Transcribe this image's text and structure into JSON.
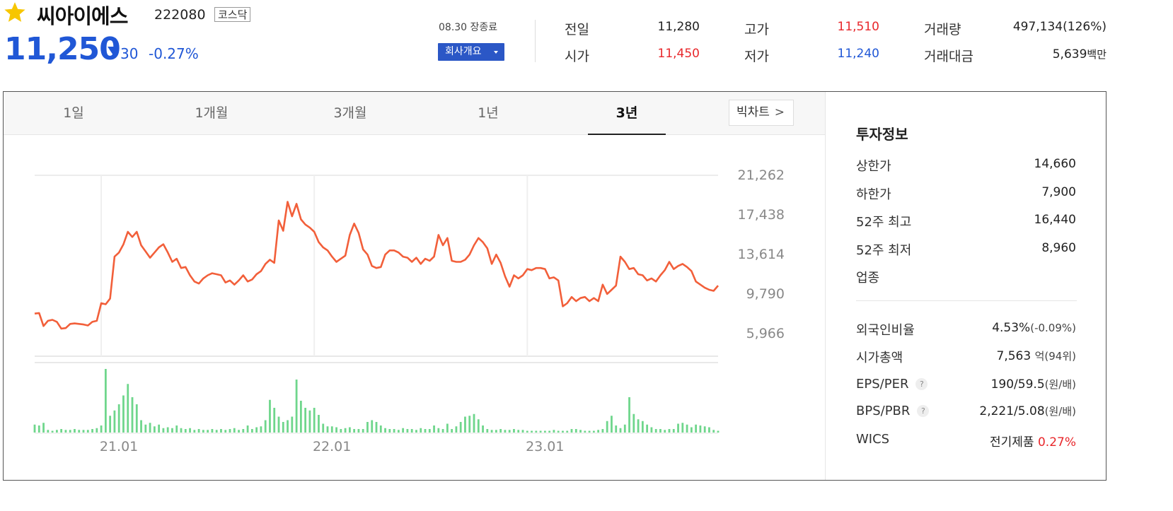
{
  "header": {
    "favorite_icon": "star-icon",
    "name": "씨아이에스",
    "code": "222080",
    "market": "코스닥",
    "price": "11,250",
    "change_direction": "down",
    "change_value": "30",
    "change_rate": "-0.27%",
    "trade_date": "08.30 장종료",
    "company_button": "회사개요",
    "colors": {
      "up": "#e8272b",
      "down": "#2057d6",
      "line": "#f25f3a",
      "volume": "#6fd68c"
    }
  },
  "quote": {
    "prev_close_label": "전일",
    "prev_close": "11,280",
    "open_label": "시가",
    "open": "11,450",
    "high_label": "고가",
    "high": "11,510",
    "low_label": "저가",
    "low": "11,240",
    "volume_label": "거래량",
    "volume": "497,134(126%)",
    "value_label": "거래대금",
    "value_num": "5,639",
    "value_unit": "백만"
  },
  "tabs": [
    "1일",
    "1개월",
    "3개월",
    "1년",
    "3년"
  ],
  "active_tab": "3년",
  "bigchart_label": "빅차트",
  "invest": {
    "title": "투자정보",
    "upper_limit_label": "상한가",
    "upper_limit": "14,660",
    "lower_limit_label": "하한가",
    "lower_limit": "7,900",
    "high52_label": "52주 최고",
    "high52": "16,440",
    "low52_label": "52주 최저",
    "low52": "8,960",
    "industry_label": "업종",
    "foreign_label": "외국인비율",
    "foreign_rate": "4.53%",
    "foreign_change": "(-0.09%)",
    "mcap_label": "시가총액",
    "mcap_value": "7,563",
    "mcap_unit": "억",
    "mcap_rank": "(94위)",
    "eps_label": "EPS/PER",
    "eps_value": "190/59.5",
    "eps_unit": "(원/배)",
    "bps_label": "BPS/PBR",
    "bps_value": "2,221/5.08",
    "bps_unit": "(원/배)",
    "wics_label": "WICS",
    "wics_value": "전기제품",
    "wics_rate": "0.27%"
  },
  "chart_data": {
    "type": "line",
    "period": "3년",
    "y_ticks": [
      "21,262",
      "17,438",
      "13,614",
      "9,790",
      "5,966"
    ],
    "y_tick_values": [
      21262,
      17438,
      13614,
      9790,
      5966
    ],
    "ylim": [
      5966,
      21262
    ],
    "x_ticks": [
      "21.01",
      "22.01",
      "23.01"
    ],
    "x_tick_index": [
      15,
      63,
      111
    ],
    "grid": true,
    "series": [
      {
        "values": [
          7900,
          7950,
          6700,
          7200,
          7300,
          7100,
          6450,
          6500,
          6900,
          6950,
          6900,
          6850,
          6750,
          7100,
          7200,
          8900,
          8800,
          9350,
          13400,
          13800,
          14600,
          15800,
          15300,
          15800,
          14500,
          13900,
          13300,
          13800,
          14300,
          14600,
          13800,
          12900,
          13200,
          12300,
          12400,
          11600,
          11000,
          10800,
          11300,
          11600,
          11800,
          11700,
          11600,
          10900,
          11100,
          10700,
          11100,
          11600,
          11000,
          11200,
          11700,
          12000,
          12700,
          13100,
          12800,
          16900,
          15900,
          18700,
          17300,
          18500,
          17000,
          16500,
          16200,
          15800,
          14800,
          14300,
          14000,
          13400,
          12900,
          13200,
          13500,
          15500,
          16600,
          15700,
          14100,
          13600,
          12500,
          12300,
          12400,
          13600,
          14000,
          14000,
          13800,
          13400,
          13300,
          12900,
          13300,
          12700,
          13200,
          13000,
          13400,
          15500,
          14500,
          15200,
          13000,
          12900,
          12900,
          13100,
          13600,
          14500,
          15200,
          14800,
          14200,
          12700,
          13600,
          12800,
          11500,
          10500,
          11600,
          11300,
          11600,
          12200,
          12100,
          12300,
          12300,
          12200,
          11300,
          11400,
          11100,
          8600,
          8900,
          9500,
          9100,
          9400,
          9500,
          9100,
          9400,
          9100,
          10700,
          9800,
          10200,
          10600,
          13400,
          12900,
          12200,
          12300,
          11700,
          11600,
          11100,
          11300,
          11000,
          11600,
          12100,
          12900,
          12200,
          12500,
          12700,
          12400,
          12000,
          11000,
          10700,
          10400,
          10200,
          10100,
          10600
        ]
      },
      {
        "name": "volume",
        "values": [
          9,
          8,
          11,
          3,
          2,
          3,
          4,
          3,
          3,
          4,
          3,
          3,
          3,
          4,
          5,
          8,
          72,
          19,
          25,
          32,
          42,
          55,
          40,
          32,
          14,
          9,
          11,
          7,
          9,
          5,
          6,
          5,
          8,
          5,
          4,
          5,
          3,
          4,
          3,
          3,
          4,
          3,
          4,
          3,
          4,
          5,
          3,
          4,
          8,
          4,
          6,
          7,
          14,
          37,
          28,
          18,
          12,
          14,
          18,
          60,
          36,
          28,
          25,
          28,
          20,
          10,
          7,
          7,
          6,
          4,
          5,
          6,
          4,
          4,
          4,
          12,
          14,
          12,
          8,
          5,
          4,
          4,
          3,
          5,
          4,
          4,
          3,
          5,
          4,
          4,
          8,
          5,
          4,
          10,
          4,
          7,
          12,
          18,
          19,
          21,
          15,
          8,
          4,
          3,
          3,
          4,
          3,
          3,
          4,
          3,
          3,
          2,
          2,
          2,
          2,
          2,
          2,
          3,
          2,
          2,
          2,
          4,
          4,
          3,
          2,
          2,
          2,
          3,
          4,
          13,
          19,
          8,
          5,
          9,
          40,
          21,
          15,
          13,
          9,
          6,
          4,
          4,
          3,
          4,
          4,
          10,
          11,
          9,
          6,
          9,
          8,
          7,
          6,
          3,
          2
        ]
      }
    ]
  }
}
